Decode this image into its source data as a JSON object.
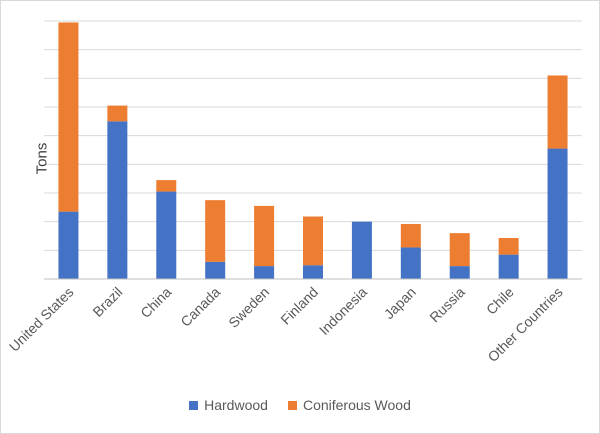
{
  "chart_data": {
    "type": "bar",
    "stacked": true,
    "title": "",
    "xlabel": "",
    "ylabel": "Tons",
    "ylim": [
      0,
      9
    ],
    "grid": true,
    "legend_position": "bottom",
    "categories": [
      "United States",
      "Brazil",
      "China",
      "Canada",
      "Sweden",
      "Finland",
      "Indonesia",
      "Japan",
      "Russia",
      "Chile",
      "Other Countries"
    ],
    "series": [
      {
        "name": "Hardwood",
        "color": "#4472c4",
        "values": [
          2.35,
          5.5,
          3.05,
          0.6,
          0.45,
          0.48,
          2.0,
          1.1,
          0.45,
          0.85,
          4.55
        ]
      },
      {
        "name": "Coniferous Wood",
        "color": "#ed7d31",
        "values": [
          6.6,
          0.55,
          0.4,
          2.15,
          2.1,
          1.7,
          0.0,
          0.82,
          1.15,
          0.58,
          2.55
        ]
      }
    ]
  }
}
